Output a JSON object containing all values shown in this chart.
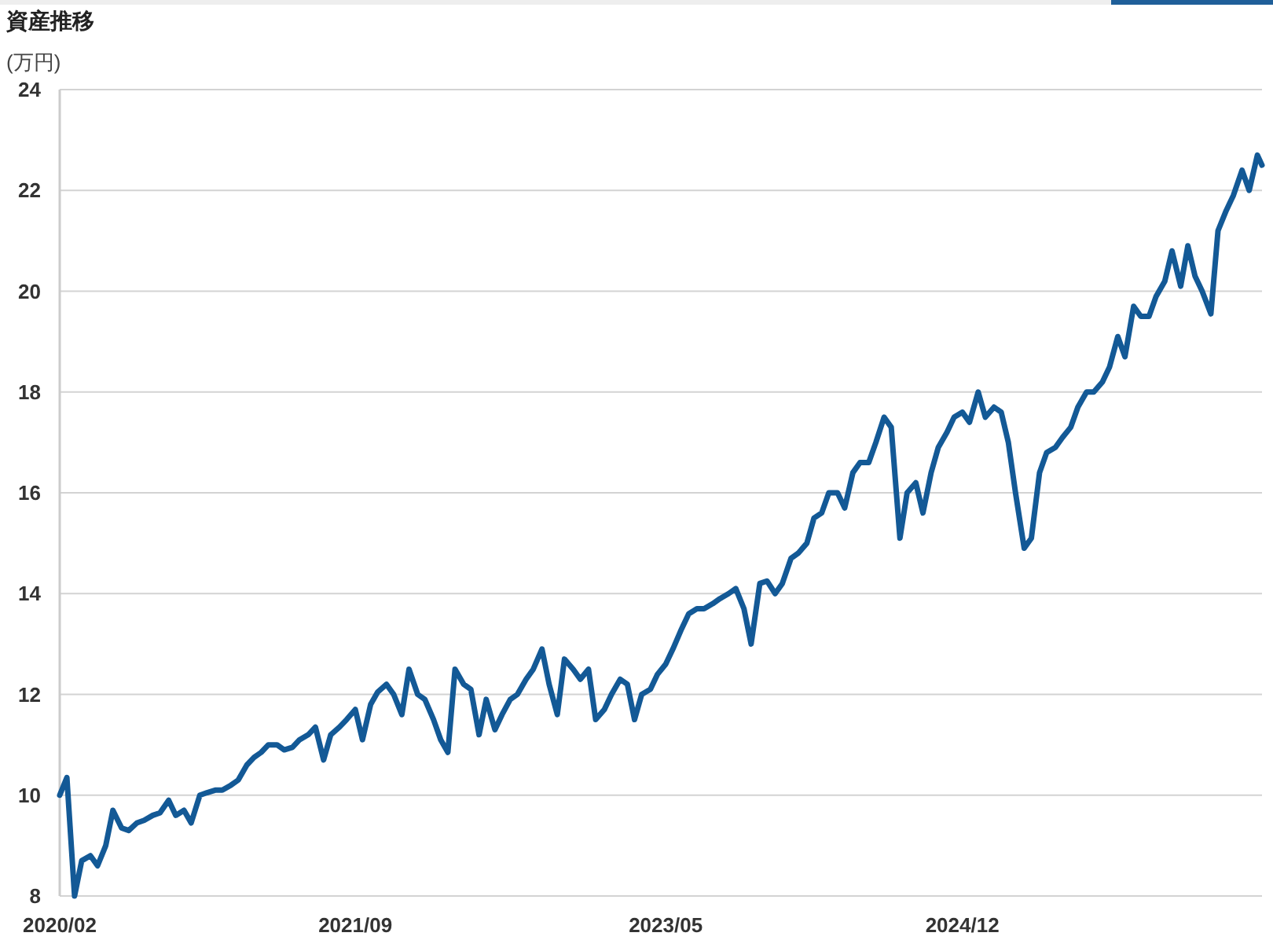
{
  "chart_data": {
    "type": "line",
    "title": "資産推移",
    "ylabel": "(万円)",
    "x": [
      "2020-02",
      "2020-02-15",
      "2020-03",
      "2020-03-15",
      "2020-04",
      "2020-04-15",
      "2020-05",
      "2020-05-15",
      "2020-06",
      "2020-06-15",
      "2020-07",
      "2020-07-15",
      "2020-08",
      "2020-08-15",
      "2020-09",
      "2020-09-15",
      "2020-10",
      "2020-10-15",
      "2020-11",
      "2020-11-15",
      "2020-12",
      "2020-12-15",
      "2021-01",
      "2021-01-15",
      "2021-02",
      "2021-02-15",
      "2021-03",
      "2021-03-15",
      "2021-04",
      "2021-04-15",
      "2021-05",
      "2021-05-15",
      "2021-06",
      "2021-06-15",
      "2021-07",
      "2021-07-15",
      "2021-08",
      "2021-08-15",
      "2021-09",
      "2021-09-15",
      "2021-10",
      "2021-10-15",
      "2021-11",
      "2021-11-15",
      "2021-12",
      "2021-12-15",
      "2022-01",
      "2022-01-15",
      "2022-02",
      "2022-02-15",
      "2022-03",
      "2022-03-15",
      "2022-04",
      "2022-04-15",
      "2022-05",
      "2022-05-15",
      "2022-06",
      "2022-06-15",
      "2022-07",
      "2022-07-15",
      "2022-08",
      "2022-08-15",
      "2022-09",
      "2022-09-15",
      "2022-10",
      "2022-10-15",
      "2022-11",
      "2022-11-15",
      "2022-12",
      "2022-12-15",
      "2023-01",
      "2023-01-15",
      "2023-02",
      "2023-02-15",
      "2023-03",
      "2023-03-15",
      "2023-04",
      "2023-04-15",
      "2023-05",
      "2023-05-15",
      "2023-06",
      "2023-06-15",
      "2023-07",
      "2023-07-15",
      "2023-08",
      "2023-08-15",
      "2023-09",
      "2023-09-15",
      "2023-10",
      "2023-10-15",
      "2023-11",
      "2023-11-15",
      "2023-12",
      "2023-12-15",
      "2024-01",
      "2024-01-15",
      "2024-02",
      "2024-02-15",
      "2024-03",
      "2024-03-15",
      "2024-04",
      "2024-04-15",
      "2024-05",
      "2024-05-15",
      "2024-06",
      "2024-06-15",
      "2024-07",
      "2024-07-15",
      "2024-08",
      "2024-08-15",
      "2024-09",
      "2024-09-15",
      "2024-10",
      "2024-10-15",
      "2024-11",
      "2024-11-15",
      "2024-12",
      "2024-12-15",
      "2025-01",
      "2025-01-15",
      "2025-02",
      "2025-02-15",
      "2025-03",
      "2025-03-15",
      "2025-04",
      "2025-04-15",
      "2025-05",
      "2025-05-15",
      "2025-06",
      "2025-06-15",
      "2025-07",
      "2025-07-15",
      "2025-08",
      "2025-08-15",
      "2025-09",
      "2025-09-15",
      "2025-10",
      "2025-10-15",
      "2025-11",
      "2025-11-15",
      "2025-12",
      "2025-12-15",
      "2026-01",
      "2026-01-15",
      "2026-02",
      "2026-02-15",
      "2026-03",
      "2026-03-15",
      "2026-04",
      "2026-04-15",
      "2026-05",
      "2026-05-15",
      "2026-06",
      "2026-06-15",
      "2026-07",
      "2026-07-10"
    ],
    "series": [
      {
        "color": "#135996",
        "values": [
          10.0,
          10.35,
          8.0,
          8.7,
          8.8,
          8.6,
          9.0,
          9.7,
          9.35,
          9.3,
          9.45,
          9.5,
          9.6,
          9.65,
          9.9,
          9.6,
          9.7,
          9.45,
          10.0,
          10.05,
          10.1,
          10.1,
          10.2,
          10.3,
          10.6,
          10.75,
          10.85,
          11.0,
          11.0,
          10.9,
          10.95,
          11.1,
          11.2,
          11.35,
          10.7,
          11.2,
          11.35,
          11.5,
          11.7,
          11.1,
          11.8,
          12.05,
          12.2,
          12.0,
          11.6,
          12.5,
          12.0,
          11.9,
          11.5,
          11.1,
          10.85,
          12.5,
          12.2,
          12.1,
          11.2,
          11.9,
          11.3,
          11.6,
          11.9,
          12.0,
          12.3,
          12.5,
          12.9,
          12.2,
          11.6,
          12.7,
          12.5,
          12.3,
          12.5,
          11.5,
          11.7,
          12.0,
          12.3,
          12.2,
          11.5,
          12.0,
          12.1,
          12.4,
          12.6,
          12.9,
          13.3,
          13.6,
          13.7,
          13.7,
          13.8,
          13.9,
          14.0,
          14.1,
          13.7,
          13.0,
          14.2,
          14.25,
          14.0,
          14.2,
          14.7,
          14.8,
          15.0,
          15.5,
          15.6,
          16.0,
          16.0,
          15.7,
          16.4,
          16.6,
          16.6,
          17.0,
          17.5,
          17.3,
          15.1,
          16.0,
          16.2,
          15.6,
          16.4,
          16.9,
          17.2,
          17.5,
          17.6,
          17.4,
          18.0,
          17.5,
          17.7,
          17.6,
          17.0,
          16.0,
          14.9,
          15.1,
          16.4,
          16.8,
          16.9,
          17.1,
          17.3,
          17.7,
          18.0,
          18.0,
          18.2,
          18.5,
          19.1,
          18.7,
          19.7,
          19.5,
          19.5,
          19.9,
          20.2,
          20.8,
          20.1,
          20.9,
          20.3,
          20.0,
          19.55,
          21.2,
          21.6,
          21.9,
          22.4,
          22.0,
          22.7,
          22.5
        ]
      }
    ],
    "xlim": [
      "2020-02",
      "2026-07-10"
    ],
    "xticks": [
      {
        "value": "2020-02",
        "label": "2020/02"
      },
      {
        "value": "2021-09",
        "label": "2021/09"
      },
      {
        "value": "2023-05",
        "label": "2023/05"
      },
      {
        "value": "2024-12",
        "label": "2024/12"
      }
    ],
    "ylim": [
      8,
      24
    ],
    "yticks": [
      8,
      10,
      12,
      14,
      16,
      18,
      20,
      22,
      24
    ],
    "grid": "y"
  }
}
